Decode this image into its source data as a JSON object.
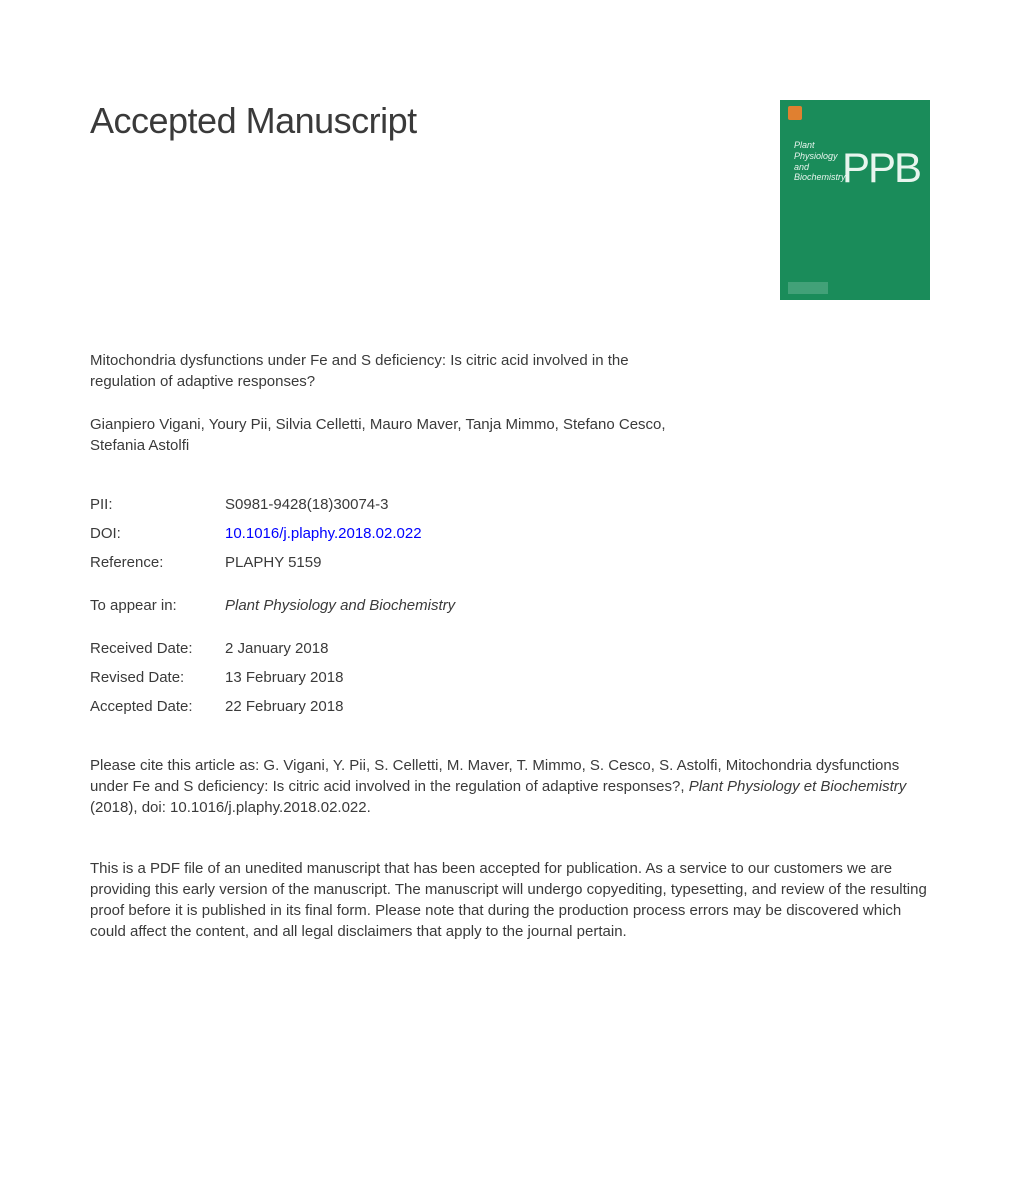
{
  "heading": "Accepted Manuscript",
  "article_title": "Mitochondria dysfunctions under Fe and S deficiency: Is citric acid involved in the regulation of adaptive responses?",
  "authors": "Gianpiero Vigani, Youry Pii, Silvia Celletti, Mauro Maver, Tanja Mimmo, Stefano Cesco, Stefania Astolfi",
  "cover": {
    "journal_title_lines": "Plant\nPhysiology\nand\nBiochemistry",
    "abbrev": "PPB",
    "bg_color": "#1a8c5a",
    "text_color": "#e8f5ee"
  },
  "meta": {
    "pii_label": "PII:",
    "pii_value": "S0981-9428(18)30074-3",
    "doi_label": "DOI:",
    "doi_value": "10.1016/j.plaphy.2018.02.022",
    "ref_label": "Reference:",
    "ref_value": "PLAPHY 5159",
    "appear_label": "To appear in:",
    "appear_value": "Plant Physiology and Biochemistry",
    "received_label": "Received Date:",
    "received_value": "2 January 2018",
    "revised_label": "Revised Date:",
    "revised_value": "13 February 2018",
    "accepted_label": "Accepted Date:",
    "accepted_value": "22 February 2018"
  },
  "citation_prefix": "Please cite this article as: G. Vigani, Y. Pii, S. Celletti, M. Maver, T. Mimmo, S. Cesco, S. Astolfi, Mitochondria dysfunctions under Fe and S deficiency: Is citric acid involved in the regulation of adaptive responses?, ",
  "citation_italic": "Plant Physiology et Biochemistry",
  "citation_suffix": " (2018), doi: 10.1016/j.plaphy.2018.02.022.",
  "disclaimer": "This is a PDF file of an unedited manuscript that has been accepted for publication. As a service to our customers we are providing this early version of the manuscript. The manuscript will undergo copyediting, typesetting, and review of the resulting proof before it is published in its final form. Please note that during the production process errors may be discovered which could affect the content, and all legal disclaimers that apply to the journal pertain.",
  "colors": {
    "text": "#3a3a3a",
    "link": "#0000ff",
    "cover_bg": "#1a8c5a",
    "page_bg": "#ffffff"
  },
  "typography": {
    "heading_fontsize": 36,
    "body_fontsize": 15,
    "font_family": "Arial"
  }
}
